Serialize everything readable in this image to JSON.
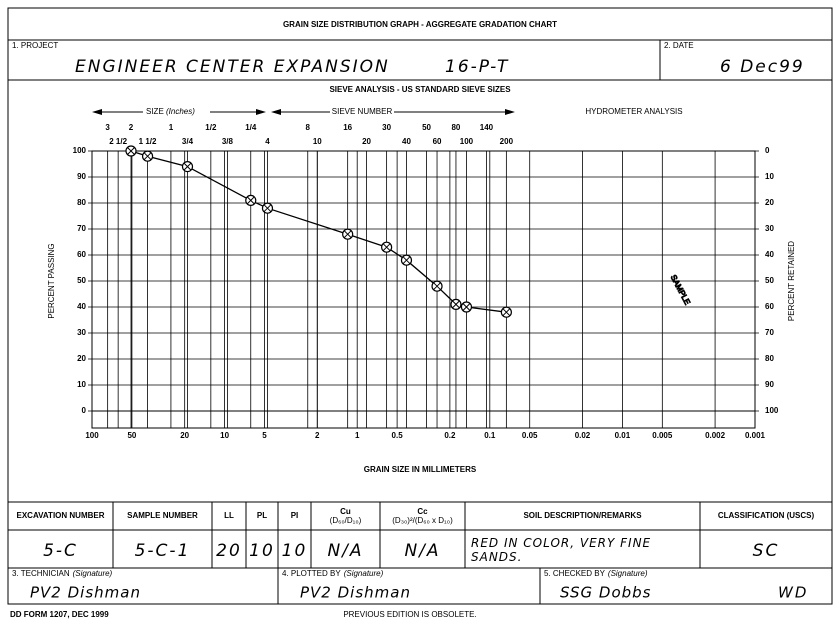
{
  "header": {
    "title": "GRAIN SIZE DISTRIBUTION GRAPH - AGGREGATE GRADATION CHART"
  },
  "project": {
    "label": "1. PROJECT",
    "value": "ENGINEER CENTER EXPANSION",
    "number": "16-P-T"
  },
  "date": {
    "label": "2. DATE",
    "value": "6 Dec99"
  },
  "chart": {
    "type": "line",
    "title": "SIEVE ANALYSIS - US STANDARD SIEVE SIZES",
    "size_label": "SIZE",
    "size_unit": "(Inches)",
    "sieve_label": "SIEVE NUMBER",
    "hydrometer_label": "HYDROMETER ANALYSIS",
    "xlabel": "GRAIN SIZE IN MILLIMETERS",
    "ylabel": "PERCENT PASSING",
    "y2label": "PERCENT RETAINED",
    "watermark": "SAMPLE",
    "color": "#000000",
    "xscale": "log",
    "xlim": [
      100,
      0.001
    ],
    "xticks": [
      100,
      50,
      20,
      10,
      5,
      2,
      1,
      0.5,
      0.2,
      0.1,
      0.05,
      0.02,
      0.01,
      0.005,
      0.002,
      0.001
    ],
    "x2ticks": [
      {
        "value": 76.2,
        "label": "3"
      },
      {
        "value": 63.5,
        "label": "2 1/2"
      },
      {
        "value": 50.8,
        "label": "2"
      },
      {
        "value": 38.1,
        "label": "1 1/2"
      },
      {
        "value": 25.4,
        "label": "1"
      },
      {
        "value": 19.05,
        "label": "3/4"
      },
      {
        "value": 12.7,
        "label": "1/2"
      },
      {
        "value": 9.525,
        "label": "3/8"
      },
      {
        "value": 6.35,
        "label": "1/4"
      },
      {
        "value": 4.75,
        "label": "4"
      },
      {
        "value": 2.36,
        "label": "8"
      },
      {
        "value": 2.0,
        "label": "10"
      },
      {
        "value": 1.18,
        "label": "16"
      },
      {
        "value": 0.85,
        "label": "20"
      },
      {
        "value": 0.6,
        "label": "30"
      },
      {
        "value": 0.425,
        "label": "40"
      },
      {
        "value": 0.3,
        "label": "50"
      },
      {
        "value": 0.25,
        "label": "60"
      },
      {
        "value": 0.18,
        "label": "80"
      },
      {
        "value": 0.15,
        "label": "100"
      },
      {
        "value": 0.106,
        "label": "140"
      },
      {
        "value": 0.075,
        "label": "200"
      }
    ],
    "ylim": [
      0,
      100
    ],
    "yticks": [
      0,
      10,
      20,
      30,
      40,
      50,
      60,
      70,
      80,
      90,
      100
    ],
    "y2lim": [
      100,
      0
    ],
    "y2ticks": [
      0,
      10,
      20,
      30,
      40,
      50,
      60,
      70,
      80,
      90,
      100
    ],
    "x": [
      50.8,
      38.1,
      19.05,
      6.35,
      4.75,
      1.18,
      0.6,
      0.425,
      0.25,
      0.18,
      0.15,
      0.075
    ],
    "values": [
      100,
      98,
      94,
      81,
      78,
      68,
      63,
      58,
      48,
      41,
      40,
      38
    ]
  },
  "table": {
    "columns": [
      {
        "title": "EXCAVATION NUMBER"
      },
      {
        "title": "SAMPLE NUMBER"
      },
      {
        "title": "LL"
      },
      {
        "title": "PL"
      },
      {
        "title": "PI"
      },
      {
        "title": "Cu",
        "subtitle": "(D₆₀/D₁₀)"
      },
      {
        "title": "Cc",
        "subtitle": "(D₃₀)²/(D₆₀ x D₁₀)"
      },
      {
        "title": "SOIL DESCRIPTION/REMARKS"
      },
      {
        "title": "CLASSIFICATION (USCS)"
      }
    ],
    "row": [
      "5-C",
      "5-C-1",
      "20",
      "10",
      "10",
      "N/A",
      "N/A",
      "RED IN COLOR, VERY FINE SANDS.",
      "SC"
    ]
  },
  "signatures": [
    {
      "label": "3. TECHNICIAN",
      "note": "(Signature)",
      "value": "PV2 Dishman"
    },
    {
      "label": "4. PLOTTED BY",
      "note": "(Signature)",
      "value": "PV2 Dishman"
    },
    {
      "label": "5. CHECKED BY",
      "note": "(Signature)",
      "value": "SSG Dobbs",
      "initials": "WD"
    }
  ],
  "footer": {
    "form": "DD FORM 1207, DEC 1999",
    "notice": "PREVIOUS EDITION IS OBSOLETE."
  }
}
